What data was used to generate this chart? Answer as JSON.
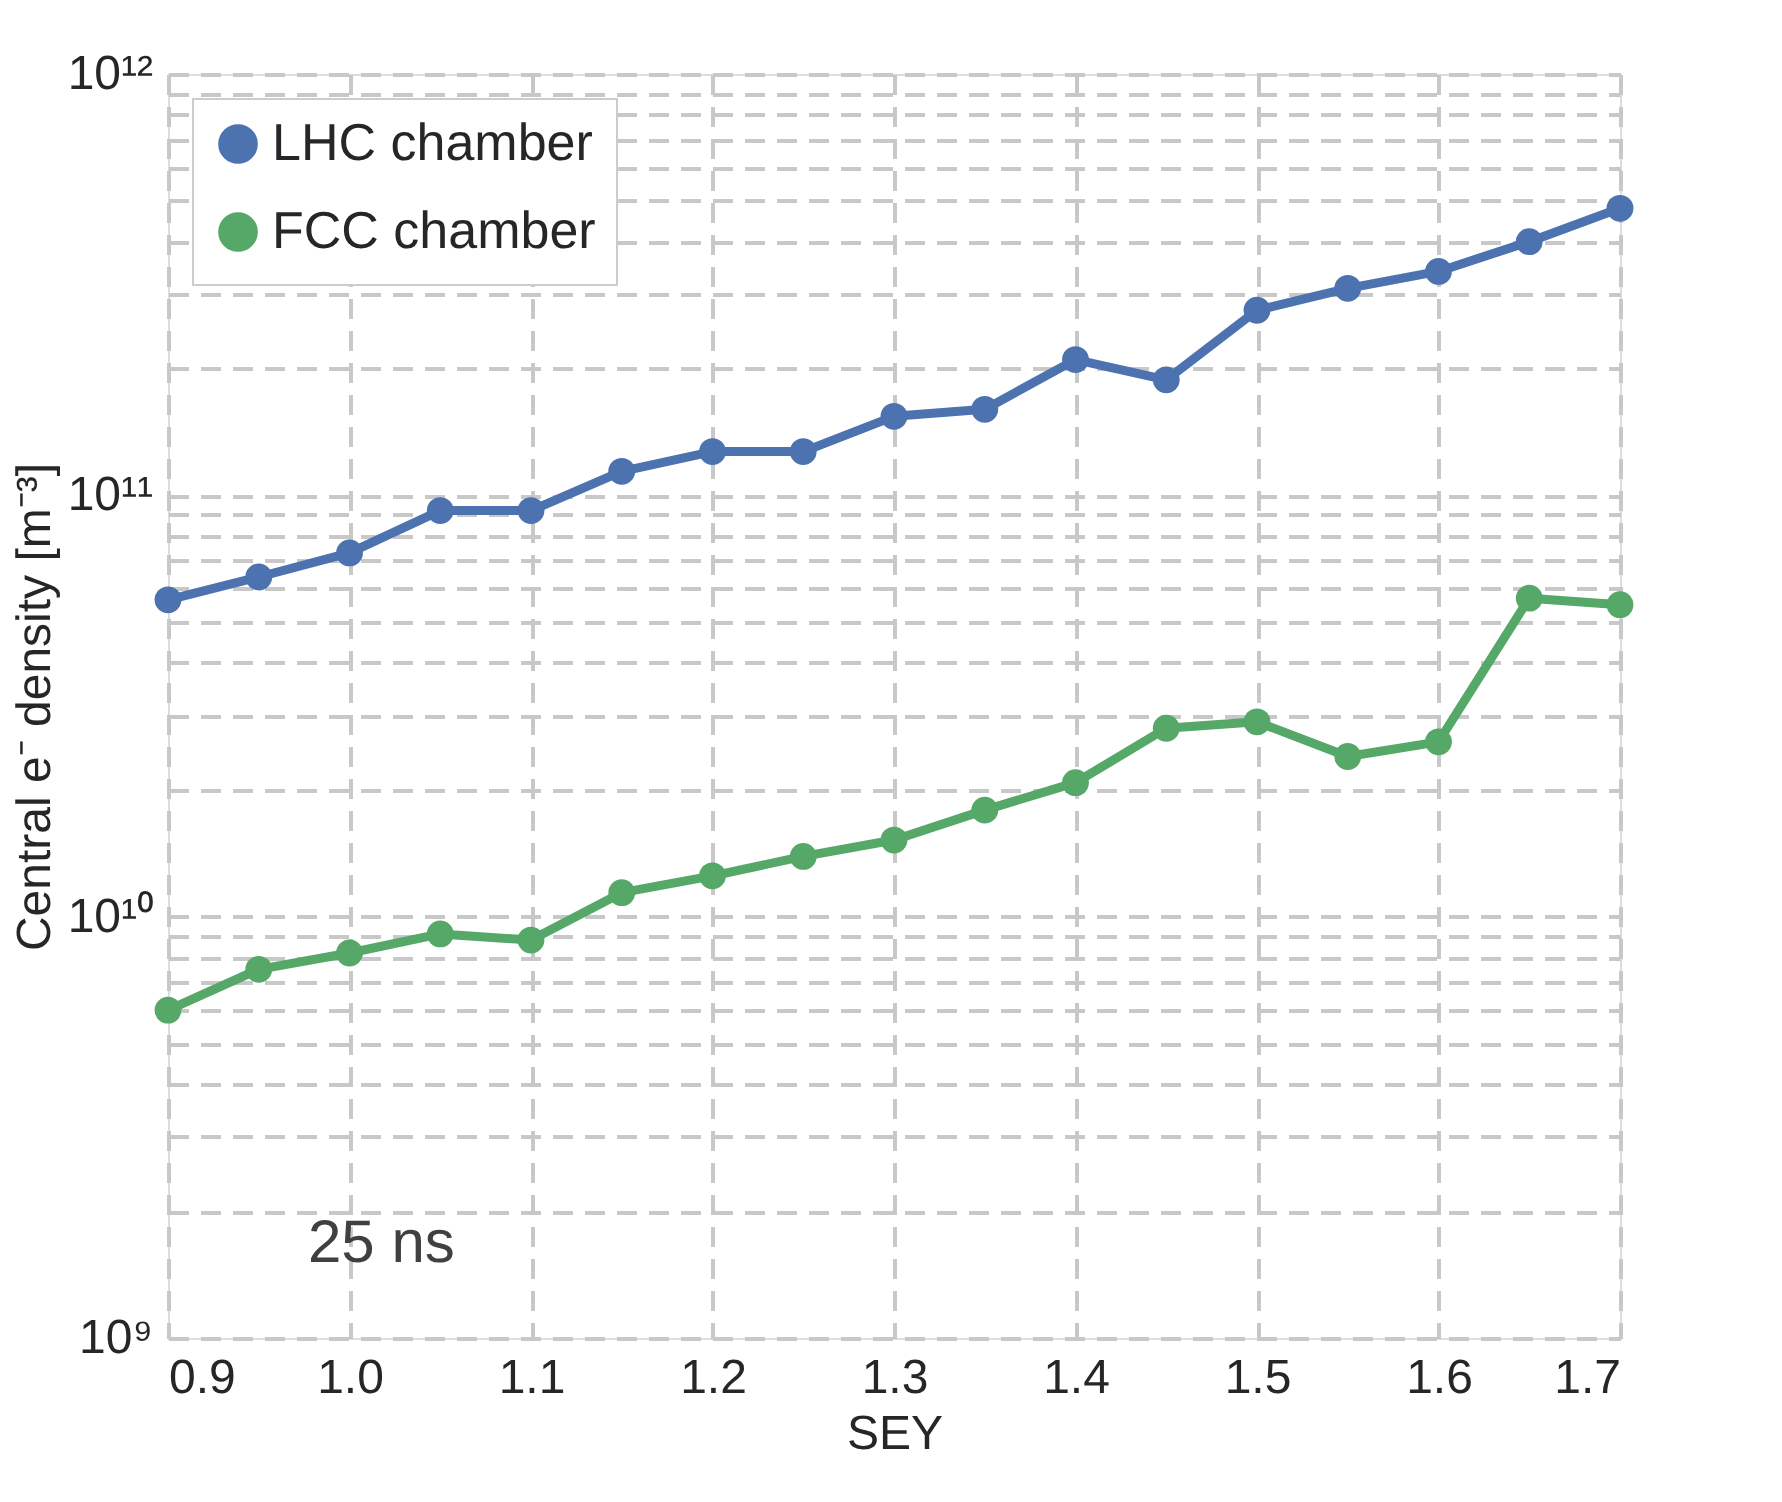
{
  "chart_data": {
    "type": "line",
    "xlabel": "SEY",
    "ylabel": "Central e⁻ density [m⁻³]",
    "x": [
      0.9,
      0.95,
      1.0,
      1.05,
      1.1,
      1.15,
      1.2,
      1.25,
      1.3,
      1.35,
      1.4,
      1.45,
      1.5,
      1.55,
      1.6,
      1.65,
      1.7
    ],
    "series": [
      {
        "name": "LHC chamber",
        "color": "#4c72b0",
        "values": [
          56500000000.0,
          64000000000.0,
          73000000000.0,
          92000000000.0,
          92000000000.0,
          114000000000.0,
          127000000000.0,
          127000000000.0,
          154000000000.0,
          160000000000.0,
          210000000000.0,
          188000000000.0,
          275000000000.0,
          310000000000.0,
          340000000000.0,
          400000000000.0,
          480000000000.0
        ]
      },
      {
        "name": "FCC chamber",
        "color": "#55a868",
        "values": [
          6000000000.0,
          7500000000.0,
          8200000000.0,
          9100000000.0,
          8800000000.0,
          11400000000.0,
          12500000000.0,
          13900000000.0,
          15200000000.0,
          17900000000.0,
          20800000000.0,
          28000000000.0,
          29000000000.0,
          24000000000.0,
          26000000000.0,
          57000000000.0,
          55000000000.0
        ]
      }
    ],
    "log": "y",
    "xlim": [
      0.9,
      1.7
    ],
    "xticks": [
      0.9,
      {
        "value": 1,
        "label": "1.0"
      },
      1.1,
      1.2,
      1.3,
      1.4,
      1.5,
      1.6,
      1.7
    ],
    "ylim": [
      1000000000.0,
      1000000000000.0
    ],
    "yticks": [
      {
        "value": 1000000000.0,
        "label": "10⁹"
      },
      {
        "value": 2000000000.0,
        "label": null
      },
      {
        "value": 3000000000.0,
        "label": null
      },
      {
        "value": 4000000000.0,
        "label": null
      },
      {
        "value": 5000000000.0,
        "label": null
      },
      {
        "value": 6000000000.0,
        "label": null
      },
      {
        "value": 7000000000.0,
        "label": null
      },
      {
        "value": 8000000000.0,
        "label": null
      },
      {
        "value": 9000000000.0,
        "label": null
      },
      {
        "value": 10000000000.0,
        "label": "10¹⁰"
      },
      {
        "value": 20000000000.0,
        "label": null
      },
      {
        "value": 30000000000.0,
        "label": null
      },
      {
        "value": 40000000000.0,
        "label": null
      },
      {
        "value": 50000000000.0,
        "label": null
      },
      {
        "value": 60000000000.0,
        "label": null
      },
      {
        "value": 70000000000.0,
        "label": null
      },
      {
        "value": 80000000000.0,
        "label": null
      },
      {
        "value": 90000000000.0,
        "label": null
      },
      {
        "value": 100000000000.0,
        "label": "10¹¹"
      },
      {
        "value": 200000000000.0,
        "label": null
      },
      {
        "value": 300000000000.0,
        "label": null
      },
      {
        "value": 400000000000.0,
        "label": null
      },
      {
        "value": 500000000000.0,
        "label": null
      },
      {
        "value": 600000000000.0,
        "label": null
      },
      {
        "value": 700000000000.0,
        "label": null
      },
      {
        "value": 800000000000.0,
        "label": null
      },
      {
        "value": 900000000000.0,
        "label": null
      },
      {
        "value": 1000000000000.0,
        "label": "10¹²"
      }
    ],
    "grid": true,
    "legend": "top left",
    "marker": "circle",
    "line_style": "solid",
    "annotations": [
      "25 ns"
    ]
  }
}
